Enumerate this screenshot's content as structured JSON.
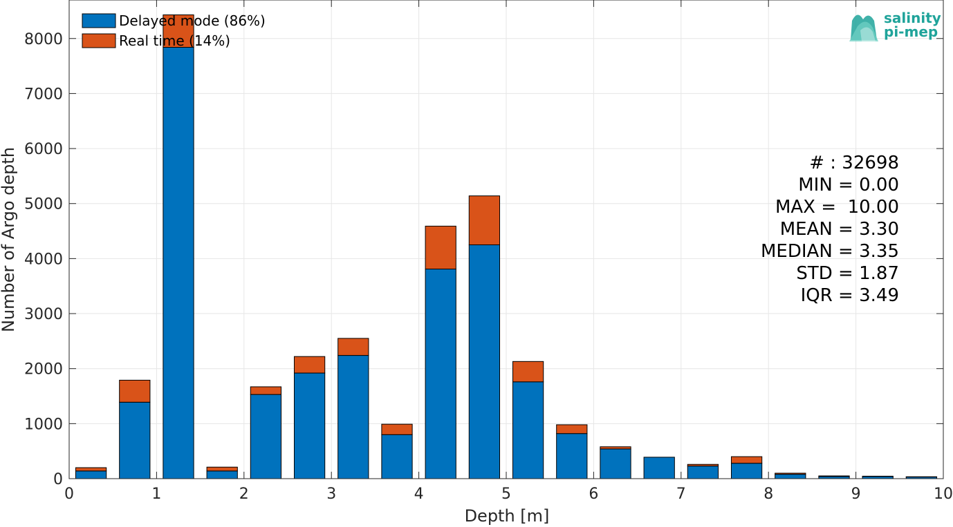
{
  "chart_data": {
    "type": "bar",
    "stacked": true,
    "xlabel": "Depth [m]",
    "ylabel": "Number of Argo depth",
    "xlim": [
      0,
      10
    ],
    "ylim": [
      0,
      8700
    ],
    "xticks": [
      "0",
      "1",
      "2",
      "3",
      "4",
      "5",
      "6",
      "7",
      "8",
      "9",
      "10"
    ],
    "yticks": [
      "0",
      "1000",
      "2000",
      "3000",
      "4000",
      "5000",
      "6000",
      "7000",
      "8000"
    ],
    "grid": true,
    "legend_position": "top-left",
    "bin_width": 0.5,
    "x": [
      0.25,
      0.75,
      1.25,
      1.75,
      2.25,
      2.75,
      3.25,
      3.75,
      4.25,
      4.75,
      5.25,
      5.75,
      6.25,
      6.75,
      7.25,
      7.75,
      8.25,
      8.75,
      9.25,
      9.75
    ],
    "series": [
      {
        "name": "Delayed mode (86%)",
        "color": "#0072bd",
        "values": [
          140,
          1390,
          7840,
          140,
          1530,
          1920,
          2240,
          800,
          3810,
          4250,
          1760,
          820,
          540,
          390,
          230,
          280,
          80,
          40,
          40,
          30
        ]
      },
      {
        "name": "Real time (14%)",
        "color": "#d95319",
        "values": [
          60,
          400,
          590,
          70,
          140,
          300,
          310,
          190,
          780,
          890,
          370,
          160,
          40,
          0,
          30,
          120,
          20,
          10,
          5,
          5
        ]
      }
    ],
    "annotations": [
      "# : 32698",
      "MIN = 0.00",
      "MAX =  10.00",
      "MEAN = 3.30",
      "MEDIAN = 3.35",
      "STD = 1.87",
      "IQR = 3.49"
    ]
  },
  "logo": {
    "line1": "salinity",
    "line2": "pi-mep",
    "color": "#1fa39a",
    "icon": "salinity-wave-icon"
  }
}
